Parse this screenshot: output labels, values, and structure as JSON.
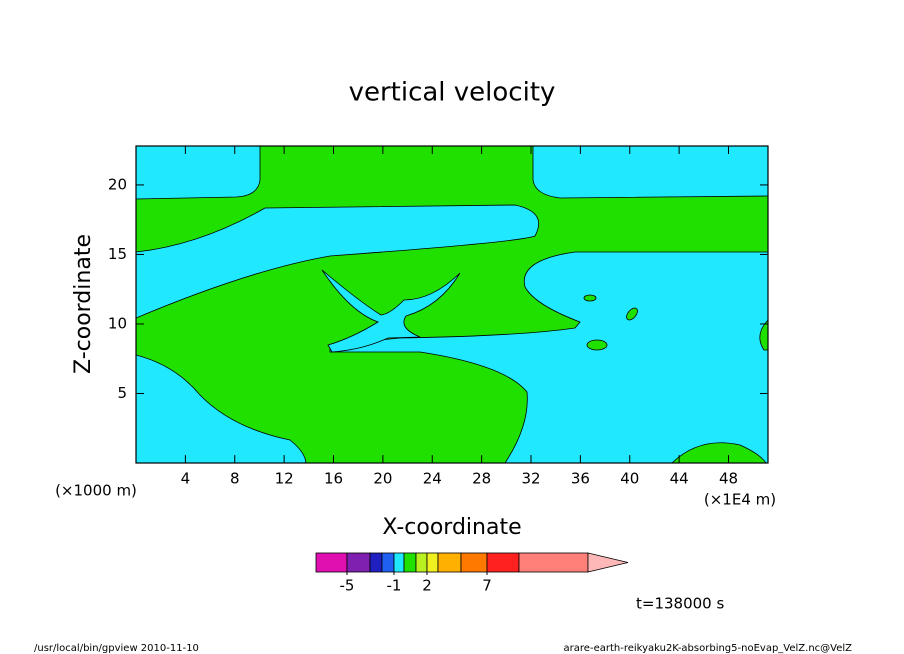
{
  "chart_data": {
    "type": "contour",
    "title": "vertical velocity",
    "xlabel": "X-coordinate",
    "ylabel": "Z-coordinate",
    "y_unit": "(×1000 m)",
    "x_unit": "(×1E4 m)",
    "xlim": [
      0,
      51.2
    ],
    "ylim": [
      0,
      22.8
    ],
    "xticks": [
      4,
      8,
      12,
      16,
      20,
      24,
      28,
      32,
      36,
      40,
      44,
      48
    ],
    "yticks": [
      5,
      10,
      15,
      20
    ],
    "colorbar": {
      "colors": [
        "#e010b0",
        "#8020b0",
        "#2020c0",
        "#2060f0",
        "#20e8ff",
        "#20e000",
        "#b8f020",
        "#f0f020",
        "#ffb000",
        "#ff7800",
        "#ff2020",
        "#ff8078",
        "#ffb8b8"
      ],
      "levels": [
        -5,
        -3,
        -2,
        -1,
        0,
        1,
        2,
        3,
        5,
        7,
        10,
        20
      ],
      "ticks": [
        -5,
        -1,
        2,
        7
      ]
    },
    "annotation": "t=138000 s",
    "footer_left": "/usr/local/bin/gpview  2010-11-10",
    "footer_right": "arare-earth-reikyaku2K-absorbing5-noEvap_VelZ.nc@VelZ"
  }
}
